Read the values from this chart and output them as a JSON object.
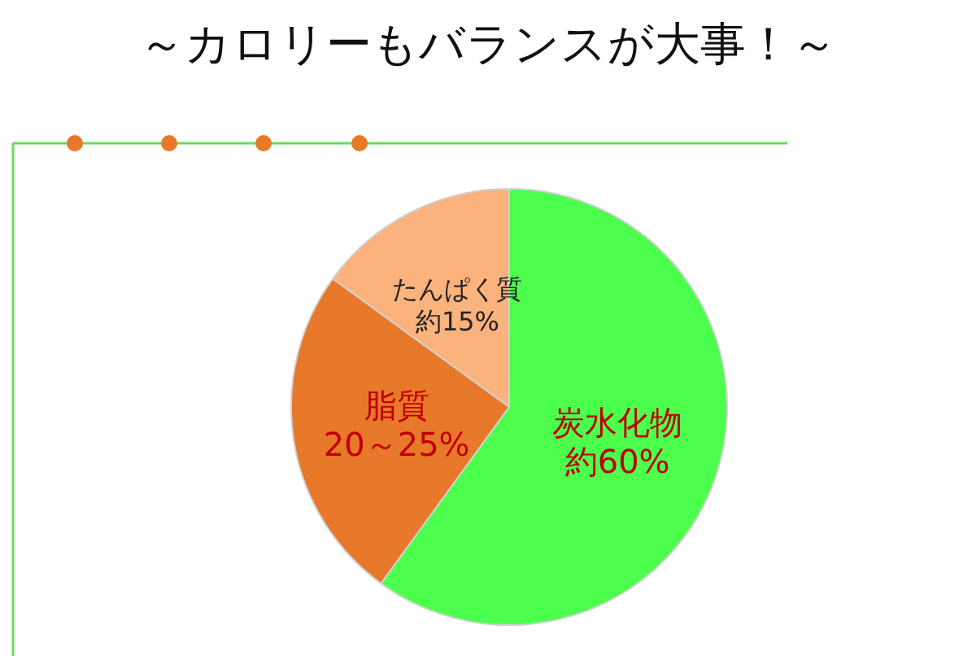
{
  "chart_data": {
    "type": "pie",
    "title": "～カロリーもバランスが大事！～",
    "categories": [
      "炭水化物",
      "脂質",
      "たんぱく質"
    ],
    "values": [
      60,
      25,
      15
    ],
    "colors": [
      "#4cff4c",
      "#e8782a",
      "#fbb27c"
    ],
    "value_labels": [
      "約60%",
      "20～25%",
      "約15%"
    ]
  }
}
